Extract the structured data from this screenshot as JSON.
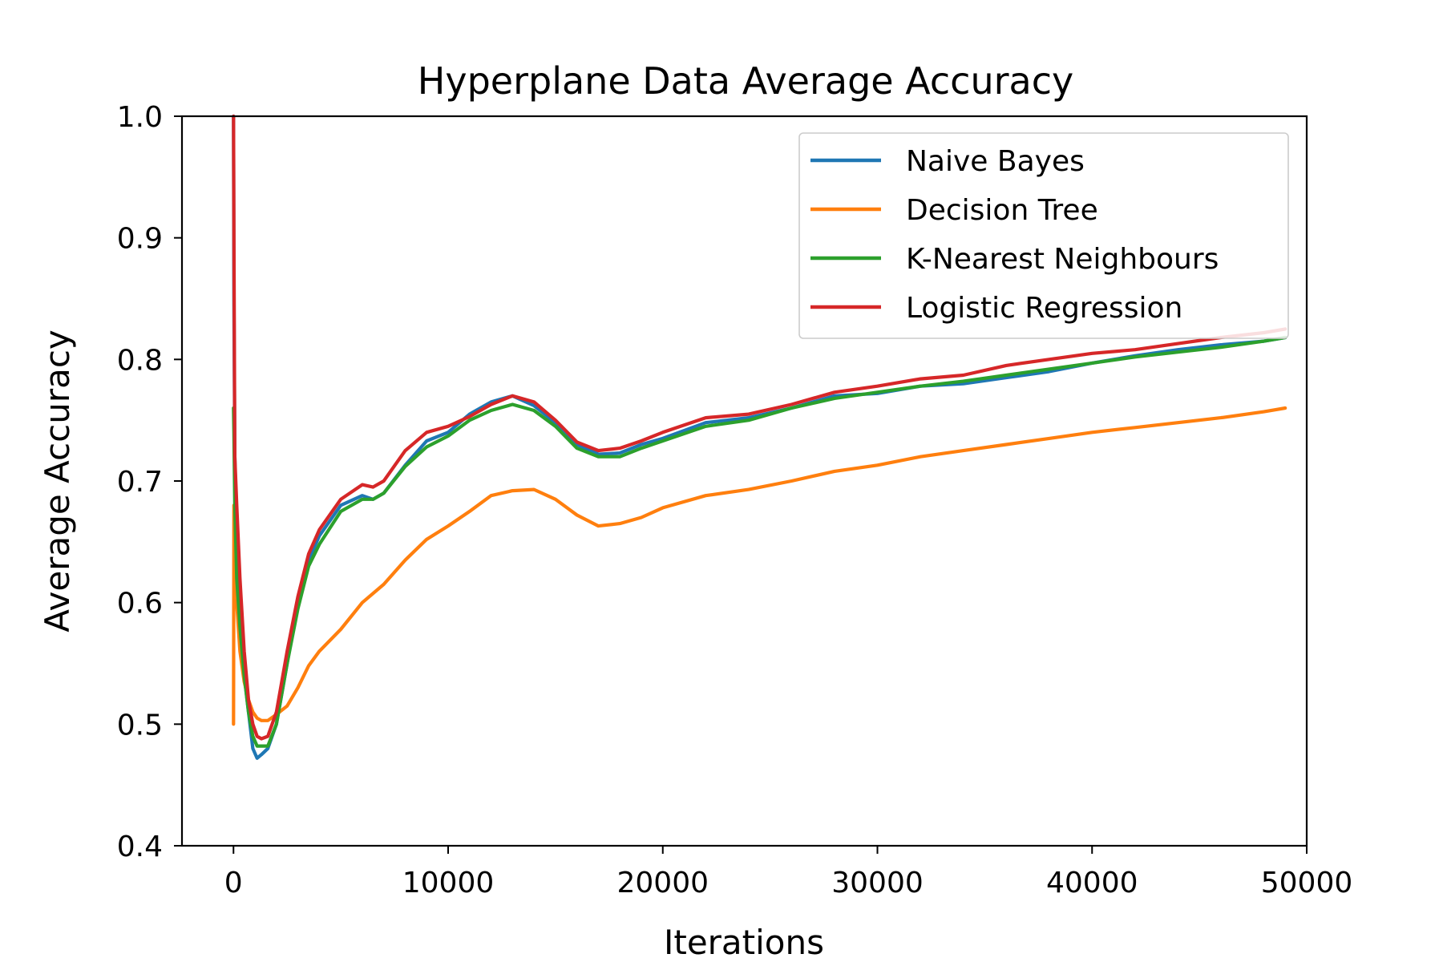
{
  "chart_data": {
    "type": "line",
    "title": "Hyperplane Data Average Accuracy",
    "xlabel": "Iterations",
    "ylabel": "Average Accuracy",
    "xlim": [
      -2400,
      50000
    ],
    "ylim": [
      0.4,
      1.0
    ],
    "xticks": [
      0,
      10000,
      20000,
      30000,
      40000,
      50000
    ],
    "xtick_labels": [
      "0",
      "10000",
      "20000",
      "30000",
      "40000",
      "50000"
    ],
    "yticks": [
      0.4,
      0.5,
      0.6,
      0.7,
      0.8,
      0.9,
      1.0
    ],
    "ytick_labels": [
      "0.4",
      "0.5",
      "0.6",
      "0.7",
      "0.8",
      "0.9",
      "1.0"
    ],
    "grid": false,
    "legend_position": "top-right",
    "series": [
      {
        "name": "Naive Bayes",
        "color": "#1f77b4",
        "x": [
          0,
          20,
          60,
          150,
          300,
          500,
          700,
          900,
          1100,
          1300,
          1600,
          2000,
          2500,
          3000,
          3500,
          4000,
          5000,
          6000,
          6500,
          7000,
          8000,
          9000,
          10000,
          11000,
          12000,
          13000,
          14000,
          15000,
          16000,
          17000,
          18000,
          19000,
          20000,
          22000,
          24000,
          26000,
          28000,
          30000,
          32000,
          34000,
          36000,
          38000,
          40000,
          42000,
          44000,
          46000,
          48000,
          49000
        ],
        "values": [
          1.0,
          0.85,
          0.72,
          0.66,
          0.6,
          0.54,
          0.51,
          0.48,
          0.472,
          0.475,
          0.48,
          0.5,
          0.55,
          0.6,
          0.635,
          0.655,
          0.68,
          0.688,
          0.685,
          0.69,
          0.713,
          0.733,
          0.74,
          0.755,
          0.765,
          0.77,
          0.762,
          0.748,
          0.73,
          0.722,
          0.723,
          0.73,
          0.735,
          0.748,
          0.752,
          0.76,
          0.77,
          0.772,
          0.778,
          0.78,
          0.785,
          0.79,
          0.797,
          0.803,
          0.808,
          0.812,
          0.815,
          0.818
        ]
      },
      {
        "name": "Decision Tree",
        "color": "#ff7f0e",
        "x": [
          0,
          20,
          60,
          150,
          300,
          500,
          700,
          900,
          1100,
          1300,
          1600,
          2000,
          2500,
          3000,
          3500,
          4000,
          5000,
          6000,
          7000,
          8000,
          9000,
          10000,
          11000,
          12000,
          13000,
          14000,
          15000,
          16000,
          17000,
          18000,
          19000,
          20000,
          22000,
          24000,
          26000,
          28000,
          30000,
          32000,
          34000,
          36000,
          38000,
          40000,
          42000,
          44000,
          46000,
          48000,
          49000
        ],
        "values": [
          0.5,
          0.68,
          0.63,
          0.6,
          0.56,
          0.535,
          0.52,
          0.51,
          0.505,
          0.503,
          0.503,
          0.508,
          0.515,
          0.53,
          0.548,
          0.56,
          0.578,
          0.6,
          0.615,
          0.635,
          0.652,
          0.663,
          0.675,
          0.688,
          0.692,
          0.693,
          0.685,
          0.672,
          0.663,
          0.665,
          0.67,
          0.678,
          0.688,
          0.693,
          0.7,
          0.708,
          0.713,
          0.72,
          0.725,
          0.73,
          0.735,
          0.74,
          0.744,
          0.748,
          0.752,
          0.757,
          0.76
        ]
      },
      {
        "name": "K-Nearest Neighbours",
        "color": "#2ca02c",
        "x": [
          0,
          20,
          60,
          150,
          300,
          500,
          700,
          900,
          1100,
          1300,
          1600,
          2000,
          2500,
          3000,
          3500,
          4000,
          5000,
          6000,
          6500,
          7000,
          8000,
          9000,
          10000,
          11000,
          12000,
          13000,
          14000,
          15000,
          16000,
          17000,
          18000,
          19000,
          20000,
          22000,
          24000,
          26000,
          28000,
          30000,
          32000,
          34000,
          36000,
          38000,
          40000,
          42000,
          44000,
          46000,
          48000,
          49000
        ],
        "values": [
          0.76,
          0.74,
          0.68,
          0.62,
          0.58,
          0.54,
          0.51,
          0.49,
          0.482,
          0.482,
          0.482,
          0.5,
          0.55,
          0.595,
          0.63,
          0.648,
          0.675,
          0.685,
          0.685,
          0.69,
          0.712,
          0.728,
          0.737,
          0.75,
          0.758,
          0.763,
          0.758,
          0.745,
          0.727,
          0.72,
          0.72,
          0.727,
          0.733,
          0.745,
          0.75,
          0.76,
          0.768,
          0.773,
          0.778,
          0.782,
          0.787,
          0.792,
          0.797,
          0.802,
          0.806,
          0.81,
          0.815,
          0.818
        ]
      },
      {
        "name": "Logistic Regression",
        "color": "#d62728",
        "x": [
          0,
          20,
          60,
          150,
          300,
          500,
          700,
          900,
          1100,
          1300,
          1600,
          2000,
          2500,
          3000,
          3500,
          4000,
          5000,
          6000,
          6500,
          7000,
          8000,
          9000,
          10000,
          11000,
          12000,
          13000,
          14000,
          15000,
          16000,
          17000,
          18000,
          19000,
          20000,
          22000,
          24000,
          26000,
          28000,
          30000,
          32000,
          34000,
          36000,
          38000,
          40000,
          42000,
          44000,
          46000,
          48000,
          49000
        ],
        "values": [
          1.0,
          0.9,
          0.72,
          0.68,
          0.62,
          0.56,
          0.52,
          0.5,
          0.49,
          0.488,
          0.49,
          0.51,
          0.56,
          0.605,
          0.64,
          0.66,
          0.685,
          0.697,
          0.695,
          0.7,
          0.725,
          0.74,
          0.745,
          0.753,
          0.763,
          0.77,
          0.765,
          0.75,
          0.732,
          0.725,
          0.727,
          0.733,
          0.74,
          0.752,
          0.755,
          0.763,
          0.773,
          0.778,
          0.784,
          0.787,
          0.795,
          0.8,
          0.805,
          0.808,
          0.813,
          0.818,
          0.822,
          0.825
        ]
      }
    ]
  }
}
